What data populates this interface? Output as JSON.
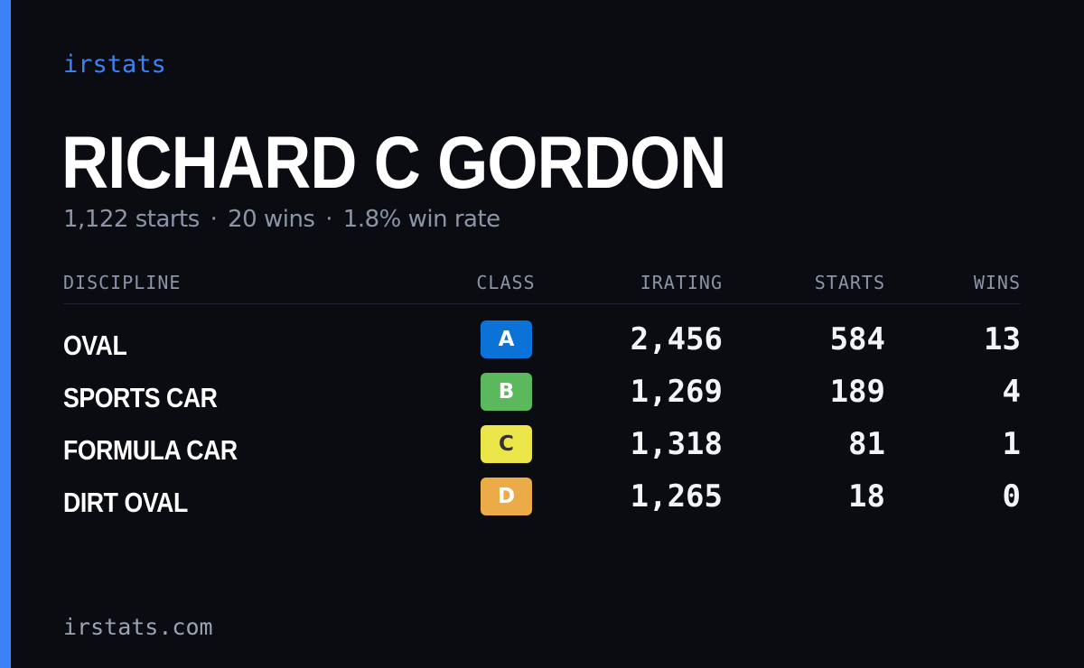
{
  "brand": "irstats",
  "driver": {
    "name": "RICHARD C GORDON"
  },
  "summary": {
    "starts": "1,122 starts",
    "wins": "20 wins",
    "win_rate": "1.8% win rate",
    "separator": "·"
  },
  "table": {
    "headers": {
      "discipline": "DISCIPLINE",
      "class": "CLASS",
      "irating": "IRATING",
      "starts": "STARTS",
      "wins": "WINS"
    },
    "rows": [
      {
        "discipline": "OVAL",
        "class": "A",
        "class_bg": "#0b72d8",
        "class_fg": "#ffffff",
        "irating": "2,456",
        "starts": "584",
        "wins": "13"
      },
      {
        "discipline": "SPORTS CAR",
        "class": "B",
        "class_bg": "#5cb85c",
        "class_fg": "#ffffff",
        "irating": "1,269",
        "starts": "189",
        "wins": "4"
      },
      {
        "discipline": "FORMULA CAR",
        "class": "C",
        "class_bg": "#ece54a",
        "class_fg": "#333333",
        "irating": "1,318",
        "starts": "81",
        "wins": "1"
      },
      {
        "discipline": "DIRT OVAL",
        "class": "D",
        "class_bg": "#ebab47",
        "class_fg": "#ffffff",
        "irating": "1,265",
        "starts": "18",
        "wins": "0"
      }
    ]
  },
  "footer": "irstats.com",
  "colors": {
    "background": "#0a0c12",
    "accent": "#3b82f6",
    "muted": "#8b95a8"
  }
}
